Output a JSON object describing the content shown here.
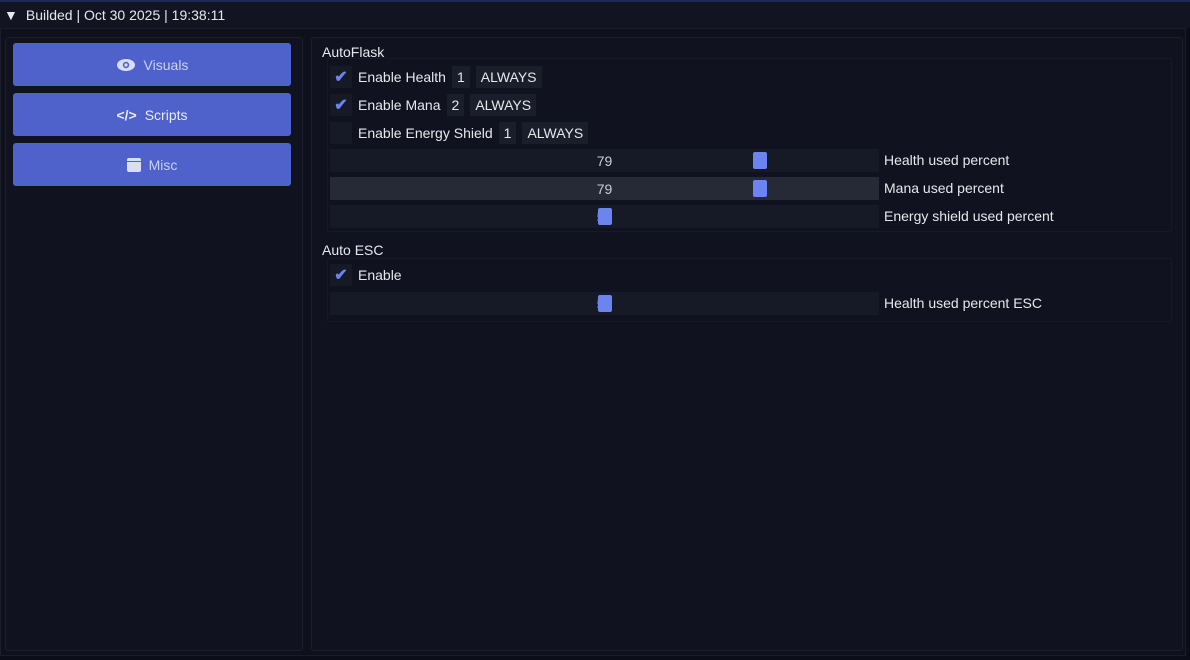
{
  "title": "Builded | Oct 30 2025 | 19:38:11",
  "nav": [
    {
      "label": "Visuals",
      "icon": "eye-icon"
    },
    {
      "label": "Scripts",
      "icon": "code-icon"
    },
    {
      "label": "Misc",
      "icon": "calendar-icon"
    }
  ],
  "autoflask": {
    "title": "AutoFlask",
    "toggles": [
      {
        "label": "Enable Health",
        "checked": true,
        "key": "1",
        "mode": "ALWAYS"
      },
      {
        "label": "Enable Mana",
        "checked": true,
        "key": "2",
        "mode": "ALWAYS"
      },
      {
        "label": "Enable Energy Shield",
        "checked": false,
        "key": "1",
        "mode": "ALWAYS"
      }
    ],
    "sliders": [
      {
        "label": "Health used percent",
        "value": "79",
        "percent": 79
      },
      {
        "label": "Mana used percent",
        "value": "79",
        "percent": 79
      },
      {
        "label": "Energy shield used percent",
        "value": "50",
        "percent": 50
      }
    ]
  },
  "autoesc": {
    "title": "Auto ESC",
    "enable": {
      "label": "Enable",
      "checked": true
    },
    "slider": {
      "label": "Health used percent ESC",
      "value": "50",
      "percent": 50
    }
  },
  "colors": {
    "accent": "#4f62cc",
    "grab": "#6b84f0"
  }
}
